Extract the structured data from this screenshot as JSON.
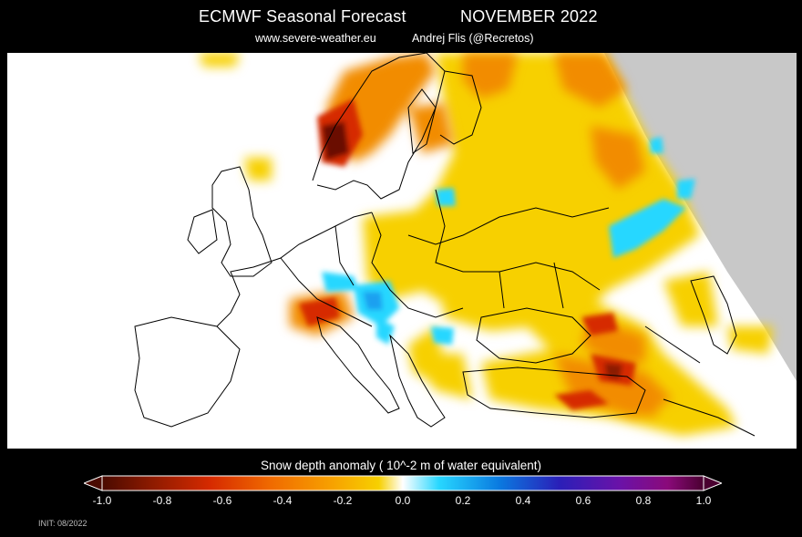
{
  "header": {
    "title": "ECMWF Seasonal Forecast",
    "month": "NOVEMBER 2022",
    "site": "www.severe-weather.eu",
    "author": "Andrej Flis (@Recretos)"
  },
  "map": {
    "region": "Europe",
    "variable": "Snow depth anomaly",
    "colors": {
      "land": "#ffffff",
      "no_data": "#c8c8c8",
      "coastline": "#000000"
    }
  },
  "colorbar": {
    "label": "Snow depth anomaly ( 10^-2 m of water equivalent)",
    "min": -1.0,
    "max": 1.0,
    "ticks": [
      "-1.0",
      "-0.8",
      "-0.6",
      "-0.4",
      "-0.2",
      "0.0",
      "0.2",
      "0.4",
      "0.6",
      "0.8",
      "1.0"
    ],
    "stops": [
      "#4a0a00",
      "#8b1a00",
      "#d62a00",
      "#f06a00",
      "#f7a000",
      "#f7d000",
      "#ffffff",
      "#27d7ff",
      "#0a7ae0",
      "#2a1fb8",
      "#6a12a8",
      "#8a0a7a",
      "#4a0030"
    ]
  },
  "footer": {
    "init": "INIT: 08/2022"
  }
}
